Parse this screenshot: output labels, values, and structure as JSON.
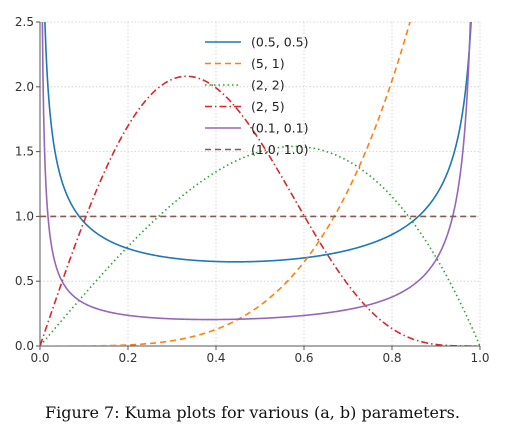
{
  "caption": "Figure 7: Kuma plots for various (a, b) parameters.",
  "chart_data": {
    "type": "line",
    "title": "",
    "xlabel": "",
    "ylabel": "",
    "xlim": [
      0,
      1
    ],
    "ylim": [
      0,
      2.5
    ],
    "xticks": [
      "0.0",
      "0.2",
      "0.4",
      "0.6",
      "0.8",
      "1.0"
    ],
    "yticks": [
      "0.0",
      "0.5",
      "1.0",
      "1.5",
      "2.0",
      "2.5"
    ],
    "grid": true,
    "legend_position": "top-center",
    "series": [
      {
        "name": "(0.5, 0.5)",
        "a": 0.5,
        "b": 0.5,
        "color": "#1f77b4",
        "dash": "solid"
      },
      {
        "name": "(5, 1)",
        "a": 5,
        "b": 1,
        "color": "#ff7f0e",
        "dash": "dashed"
      },
      {
        "name": "(2, 2)",
        "a": 2,
        "b": 2,
        "color": "#2ca02c",
        "dash": "dotted"
      },
      {
        "name": "(2, 5)",
        "a": 2,
        "b": 5,
        "color": "#d62728",
        "dash": "dashdot"
      },
      {
        "name": "(0.1, 0.1)",
        "a": 0.1,
        "b": 0.1,
        "color": "#9467bd",
        "dash": "solid"
      },
      {
        "name": "(1.0, 1.0)",
        "a": 1.0,
        "b": 1.0,
        "color": "#8c564b",
        "dash": "dashed"
      }
    ]
  }
}
